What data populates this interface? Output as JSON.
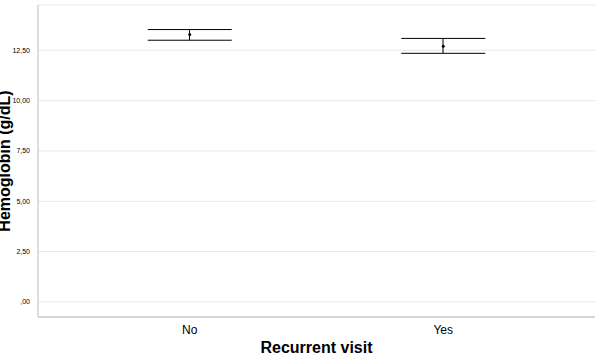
{
  "chart_data": {
    "type": "errorbar",
    "x_label": "Recurrent visit",
    "y_label": "Hemoglobin (g/dL)",
    "categories": [
      "No",
      "Yes"
    ],
    "values": [
      13.29,
      12.7
    ],
    "error_low": [
      13.0,
      12.35
    ],
    "error_high": [
      13.53,
      13.09
    ],
    "color": "#000000",
    "ylim": [
      -0.75,
      14.75
    ],
    "yticks": [
      {
        "value": 0,
        "label": ",00"
      },
      {
        "value": 2.5,
        "label": "2,50"
      },
      {
        "value": 5,
        "label": "5,00"
      },
      {
        "value": 7.5,
        "label": "7,50"
      },
      {
        "value": 10,
        "label": "10,00"
      },
      {
        "value": 12.5,
        "label": "12,50"
      }
    ],
    "grid": true
  }
}
